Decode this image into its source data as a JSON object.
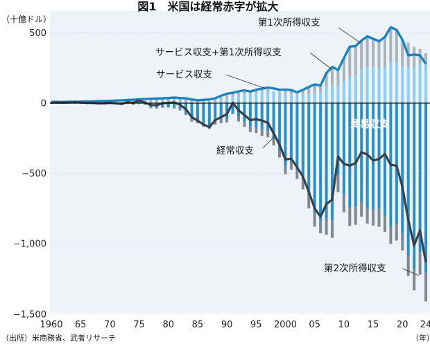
{
  "title": "図1　米国は経常赤字が拡大",
  "unit_label": "（十億ドル）",
  "source": "（出所）米商務省、武者リサーチ",
  "x_unit": "（年）",
  "colors": {
    "plot_bg": "#eef3f9",
    "trade": "#2a8fc8",
    "services": "#8fcdf0",
    "primary_income": "#a9b3bc",
    "secondary_income": "#808890",
    "current_account": "#3a3f45",
    "services_plus_primary": "#1a84c2",
    "zero_line": "#111111"
  },
  "chart_data": {
    "type": "bar",
    "title": "図1　米国は経常赤字が拡大",
    "ylabel": "（十億ドル）",
    "ylim": [
      -1500,
      620
    ],
    "yticks": [
      {
        "value": 500,
        "label": "500"
      },
      {
        "value": 0,
        "label": "0"
      },
      {
        "value": -500,
        "label": "−500"
      },
      {
        "value": -1000,
        "label": "−1,000"
      },
      {
        "value": -1500,
        "label": "−1,500"
      }
    ],
    "xticks": [
      {
        "year": 1960,
        "label": "1960"
      },
      {
        "year": 1965,
        "label": "65"
      },
      {
        "year": 1970,
        "label": "70"
      },
      {
        "year": 1975,
        "label": "75"
      },
      {
        "year": 1980,
        "label": "80"
      },
      {
        "year": 1985,
        "label": "85"
      },
      {
        "year": 1990,
        "label": "90"
      },
      {
        "year": 1995,
        "label": "95"
      },
      {
        "year": 2000,
        "label": "2000"
      },
      {
        "year": 2005,
        "label": "05"
      },
      {
        "year": 2010,
        "label": "10"
      },
      {
        "year": 2015,
        "label": "15"
      },
      {
        "year": 2020,
        "label": "20"
      },
      {
        "year": 2024,
        "label": "24"
      }
    ],
    "years": [
      1960,
      1961,
      1962,
      1963,
      1964,
      1965,
      1966,
      1967,
      1968,
      1969,
      1970,
      1971,
      1972,
      1973,
      1974,
      1975,
      1976,
      1977,
      1978,
      1979,
      1980,
      1981,
      1982,
      1983,
      1984,
      1985,
      1986,
      1987,
      1988,
      1989,
      1990,
      1991,
      1992,
      1993,
      1994,
      1995,
      1996,
      1997,
      1998,
      1999,
      2000,
      2001,
      2002,
      2003,
      2004,
      2005,
      2006,
      2007,
      2008,
      2009,
      2010,
      2011,
      2012,
      2013,
      2014,
      2015,
      2016,
      2017,
      2018,
      2019,
      2020,
      2021,
      2022,
      2023,
      2024
    ],
    "series": [
      {
        "name": "貿易収支",
        "key": "trade",
        "values": [
          5,
          5,
          4,
          5,
          7,
          5,
          4,
          4,
          1,
          1,
          2,
          -2,
          -6,
          1,
          -4,
          9,
          -8,
          -31,
          -33,
          -27,
          -25,
          -28,
          -36,
          -67,
          -112,
          -122,
          -145,
          -159,
          -127,
          -117,
          -111,
          -77,
          -97,
          -132,
          -166,
          -174,
          -191,
          -198,
          -248,
          -337,
          -447,
          -422,
          -475,
          -542,
          -665,
          -783,
          -837,
          -821,
          -833,
          -510,
          -648,
          -741,
          -742,
          -702,
          -752,
          -761,
          -749,
          -800,
          -878,
          -857,
          -922,
          -1084,
          -1180,
          -1059,
          -1210
        ]
      },
      {
        "name": "サービス収支",
        "key": "services",
        "values": [
          -1,
          -1,
          -1,
          -1,
          -1,
          -2,
          -2,
          -2,
          -1,
          -1,
          -1,
          1,
          1,
          1,
          2,
          4,
          4,
          5,
          6,
          6,
          7,
          11,
          12,
          9,
          4,
          0,
          6,
          7,
          12,
          25,
          30,
          45,
          57,
          62,
          67,
          77,
          85,
          90,
          83,
          80,
          70,
          64,
          61,
          56,
          62,
          75,
          80,
          120,
          125,
          125,
          153,
          192,
          203,
          240,
          260,
          262,
          245,
          255,
          290,
          290,
          260,
          260,
          250,
          285,
          295
        ]
      },
      {
        "name": "第1次所得収支",
        "key": "primary",
        "values": [
          4,
          4,
          4,
          5,
          5,
          5,
          5,
          5,
          6,
          6,
          6,
          7,
          8,
          11,
          14,
          14,
          16,
          17,
          19,
          27,
          27,
          28,
          21,
          25,
          16,
          19,
          11,
          7,
          14,
          14,
          27,
          19,
          16,
          19,
          15,
          18,
          19,
          9,
          0,
          5,
          19,
          22,
          7,
          42,
          50,
          58,
          45,
          93,
          133,
          110,
          168,
          210,
          203,
          205,
          215,
          195,
          195,
          215,
          250,
          230,
          190,
          170,
          150,
          100,
          60
        ]
      },
      {
        "name": "第2次所得収支",
        "key": "secondary",
        "values": [
          -4,
          -4,
          -4,
          -4,
          -4,
          -4,
          -5,
          -5,
          -5,
          -5,
          -6,
          -7,
          -8,
          -7,
          -9,
          -7,
          -5,
          -5,
          -5,
          -6,
          -8,
          -11,
          -16,
          -17,
          -20,
          -22,
          -24,
          -25,
          -25,
          -26,
          -27,
          10,
          -33,
          -37,
          -39,
          -38,
          -43,
          -45,
          -53,
          -50,
          -58,
          -51,
          -64,
          -71,
          -84,
          -95,
          -89,
          -115,
          -125,
          -122,
          -128,
          -133,
          -123,
          -105,
          -104,
          -109,
          -130,
          -115,
          -122,
          -120,
          -125,
          -145,
          -150,
          -160,
          -200
        ]
      },
      {
        "name": "経常収支",
        "key": "current",
        "values": [
          4,
          5,
          3,
          5,
          7,
          5,
          2,
          2,
          -2,
          -2,
          2,
          -2,
          -6,
          7,
          2,
          18,
          4,
          -14,
          -15,
          -1,
          2,
          5,
          -11,
          -44,
          -99,
          -125,
          -151,
          -171,
          -121,
          -99,
          -79,
          3,
          -51,
          -84,
          -121,
          -114,
          -124,
          -140,
          -215,
          -296,
          -401,
          -394,
          -456,
          -522,
          -631,
          -749,
          -806,
          -718,
          -686,
          -380,
          -432,
          -445,
          -426,
          -349,
          -365,
          -408,
          -397,
          -361,
          -438,
          -445,
          -597,
          -831,
          -1012,
          -905,
          -1133
        ]
      },
      {
        "name": "サービス収支+第1次所得収支",
        "key": "svc_primary",
        "values": [
          9,
          9,
          9,
          10,
          10,
          11,
          12,
          13,
          15,
          15,
          16,
          18,
          20,
          22,
          24,
          27,
          29,
          31,
          33,
          34,
          36,
          40,
          36,
          34,
          26,
          20,
          23,
          26,
          34,
          52,
          67,
          74,
          83,
          91,
          82,
          95,
          104,
          110,
          105,
          95,
          97,
          93,
          77,
          95,
          115,
          133,
          125,
          213,
          258,
          235,
          321,
          402,
          406,
          445,
          475,
          457,
          440,
          470,
          540,
          520,
          450,
          340,
          345,
          340,
          280
        ]
      }
    ],
    "labels": {
      "primary": "第1次所得収支",
      "svc_primary": "サービス収支+第1次所得収支",
      "services": "サービス収支",
      "trade": "貿易収支",
      "current": "経常収支",
      "secondary": "第2次所得収支"
    }
  }
}
